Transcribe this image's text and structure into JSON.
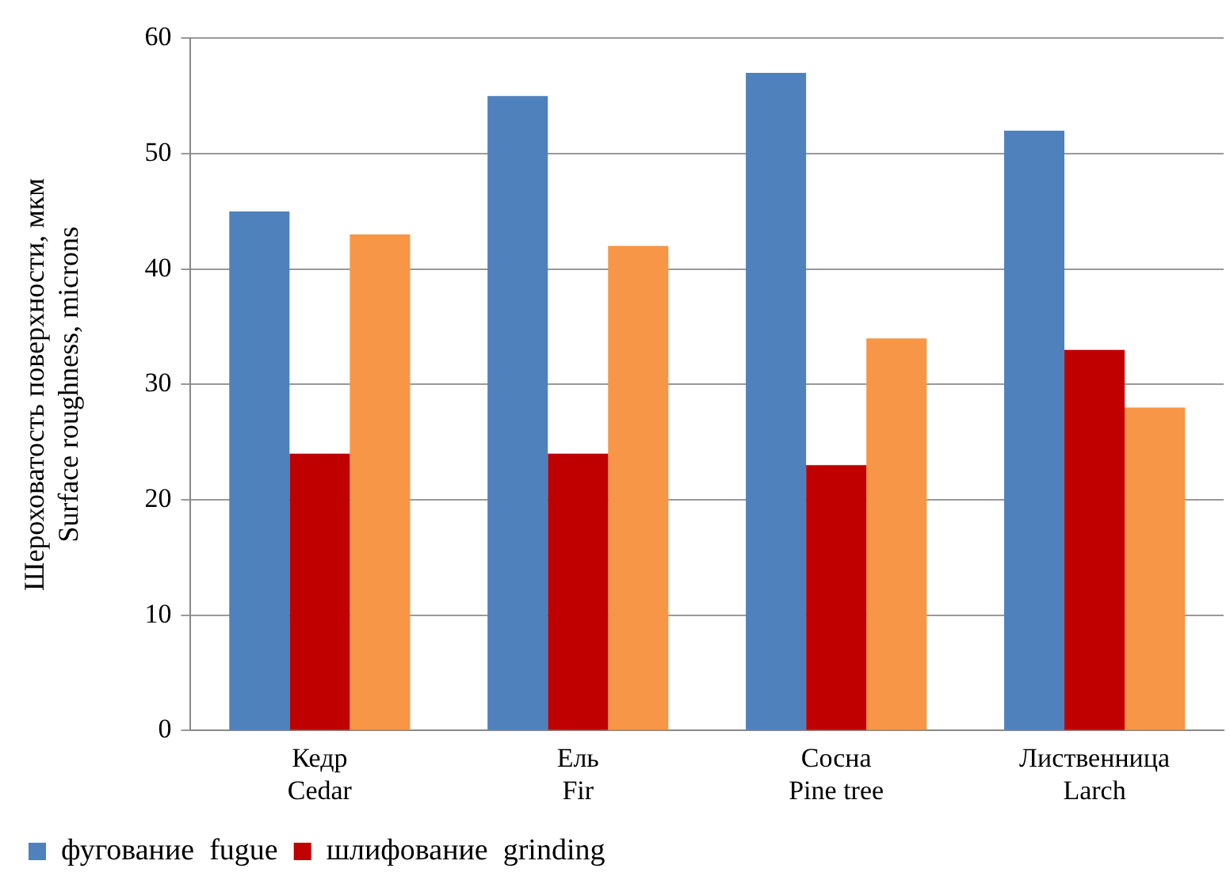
{
  "chart_data": {
    "type": "bar",
    "ylabel": "Шероховатость поверхности, мкм\nSurface roughness, microns",
    "categories": [
      "Кедр\nCedar",
      "Ель\nFir",
      "Сосна\nPine tree",
      "Лиственница\nLarch"
    ],
    "series": [
      {
        "name": "фугование  fugue",
        "color": "#4f81bd",
        "values": [
          45,
          55,
          57,
          52
        ]
      },
      {
        "name": "шлифование  grinding",
        "color": "#c00000",
        "values": [
          24,
          24,
          23,
          33
        ]
      },
      {
        "color": "#f79646",
        "values": [
          43,
          42,
          34,
          28
        ]
      }
    ],
    "ylim": [
      0,
      60
    ],
    "yticks": [
      0,
      10,
      20,
      30,
      40,
      50,
      60
    ],
    "grid": "y",
    "legend": "bottom"
  }
}
